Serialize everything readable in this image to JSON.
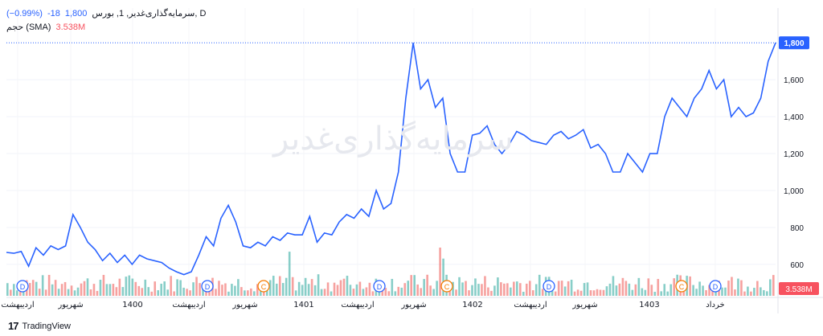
{
  "legend": {
    "symbol": "سرمایه‌گذاری‌غدیر, 1, بورس, D",
    "last": "1,800",
    "change": "-18",
    "change_pct": "(−0.99%)",
    "volume_label": "حجم (SMA)",
    "volume_value": "3.538M"
  },
  "watermark": "سرمایه‌گذاری‌غدیر",
  "footer": {
    "brand": "TradingView"
  },
  "colors": {
    "line": "#2962ff",
    "vol_up": "#26a69a",
    "vol_down": "#ef5350",
    "price_tag": "#2962ff",
    "vol_tag": "#f7525f"
  },
  "chart_data": {
    "type": "line",
    "title": "",
    "ylim": [
      530,
      1840
    ],
    "y_ticks": [
      "600",
      "800",
      "1,000",
      "1,200",
      "1,400",
      "1,600"
    ],
    "last_price_label": "1,800",
    "volume_tag_label": "3.538M",
    "x_labels": [
      "اردیبهشت",
      "شهریور",
      "1400",
      "اردیبهشت",
      "شهریور",
      "1401",
      "اردیبهشت",
      "شهریور",
      "1402",
      "اردیبهشت",
      "شهریور",
      "1403",
      "خرداد"
    ],
    "series": [
      {
        "values": [
          665,
          660,
          670,
          590,
          690,
          650,
          700,
          680,
          700,
          870,
          800,
          720,
          680,
          620,
          660,
          610,
          650,
          600,
          650,
          630,
          620,
          610,
          580,
          560,
          545,
          560,
          650,
          750,
          700,
          850,
          920,
          830,
          700,
          690,
          720,
          700,
          750,
          730,
          770,
          760,
          760,
          860,
          720,
          770,
          760,
          830,
          870,
          850,
          900,
          860,
          1000,
          900,
          930,
          1100,
          1500,
          1800,
          1550,
          1600,
          1450,
          1500,
          1200,
          1100,
          1100,
          1300,
          1310,
          1350,
          1250,
          1200,
          1250,
          1320,
          1300,
          1270,
          1260,
          1250,
          1300,
          1320,
          1280,
          1300,
          1330,
          1230,
          1250,
          1200,
          1100,
          1100,
          1200,
          1150,
          1100,
          1200,
          1200,
          1400,
          1500,
          1450,
          1400,
          1500,
          1550,
          1650,
          1550,
          1600,
          1400,
          1450,
          1400,
          1420,
          1500,
          1700,
          1800
        ],
        "last": 1800
      }
    ],
    "markers": [
      {
        "label": "D",
        "color": "#2962ff"
      },
      {
        "label": "D",
        "color": "#2962ff"
      },
      {
        "label": "C",
        "color": "#f57c00"
      },
      {
        "label": "D",
        "color": "#2962ff"
      },
      {
        "label": "C",
        "color": "#f57c00"
      },
      {
        "label": "D",
        "color": "#2962ff"
      },
      {
        "label": "C",
        "color": "#f57c00"
      },
      {
        "label": "D",
        "color": "#2962ff"
      }
    ]
  }
}
